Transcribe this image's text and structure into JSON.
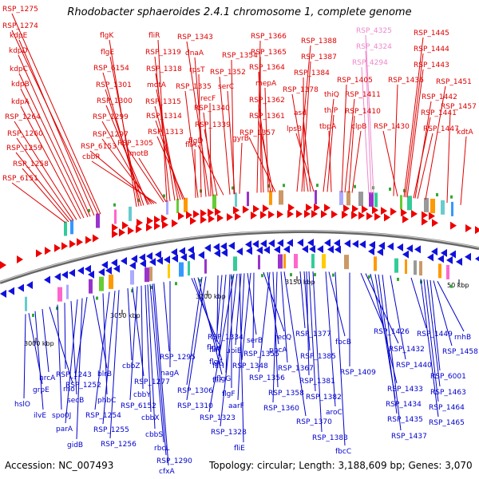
{
  "title": "Rhodobacter sphaeroides 2.4.1 chromosome 1, complete genome",
  "footer": {
    "accession": "Accession: NC_007493",
    "topology": "Topology: circular; Length: 3,188,609 bp; Genes: 3,070"
  },
  "colors": {
    "plus_label": "#dd0000",
    "minus_label": "#0000cc",
    "pink_label": "#ee88cc",
    "backbone": "#888888",
    "plus_strand": "#ff0000",
    "minus_strand": "#0000ee"
  },
  "ticks": [
    {
      "label": "3000 kbp"
    },
    {
      "label": "3050 kbp"
    },
    {
      "label": "3100 kbp"
    },
    {
      "label": "3150 kbp"
    },
    {
      "label": "50 kbp"
    }
  ],
  "plus_labels": [
    {
      "text": "RSP_1275"
    },
    {
      "text": "RSP_1274"
    },
    {
      "text": "kdpE"
    },
    {
      "text": "kdpD"
    },
    {
      "text": "kdpC"
    },
    {
      "text": "kdpB"
    },
    {
      "text": "kdpA"
    },
    {
      "text": "RSP_1264"
    },
    {
      "text": "RSP_1260"
    },
    {
      "text": "RSP_1259"
    },
    {
      "text": "RSP_1258"
    },
    {
      "text": "RSP_6151"
    },
    {
      "text": "flgK"
    },
    {
      "text": "flgE"
    },
    {
      "text": "RSP_6154"
    },
    {
      "text": "RSP_1301"
    },
    {
      "text": "RSP_1300"
    },
    {
      "text": "RSP_1299"
    },
    {
      "text": "RSP_1297"
    },
    {
      "text": "RSP_6153"
    },
    {
      "text": "cbbR"
    },
    {
      "text": "fliR"
    },
    {
      "text": "RSP_1319"
    },
    {
      "text": "RSP_1318"
    },
    {
      "text": "motA"
    },
    {
      "text": "RSP_1315"
    },
    {
      "text": "RSP_1314"
    },
    {
      "text": "RSP_1313"
    },
    {
      "text": "RSP_1305"
    },
    {
      "text": "motB"
    },
    {
      "text": "RSP_1343"
    },
    {
      "text": "dnaA"
    },
    {
      "text": "rpsT"
    },
    {
      "text": "RSP_1335"
    },
    {
      "text": "recF"
    },
    {
      "text": "RSP_1340"
    },
    {
      "text": "RSP_1339"
    },
    {
      "text": "fliA"
    },
    {
      "text": "flgD"
    },
    {
      "text": "RSP_1354"
    },
    {
      "text": "RSP_1352"
    },
    {
      "text": "serC"
    },
    {
      "text": "gyrB"
    },
    {
      "text": "RSP_1366"
    },
    {
      "text": "RSP_1365"
    },
    {
      "text": "RSP_1364"
    },
    {
      "text": "mepA"
    },
    {
      "text": "RSP_1362"
    },
    {
      "text": "RSP_1361"
    },
    {
      "text": "RSP_1357"
    },
    {
      "text": "RSP_1388"
    },
    {
      "text": "RSP_1387"
    },
    {
      "text": "RSP_1384"
    },
    {
      "text": "RSP_1378"
    },
    {
      "text": "thiQ"
    },
    {
      "text": "asd"
    },
    {
      "text": "thiP"
    },
    {
      "text": "lpsB"
    },
    {
      "text": "tbpA"
    },
    {
      "text": "RSP_1405"
    },
    {
      "text": "RSP_1411"
    },
    {
      "text": "RSP_1410"
    },
    {
      "text": "clpB"
    },
    {
      "text": "RSP_1445"
    },
    {
      "text": "RSP_1444"
    },
    {
      "text": "RSP_1443"
    },
    {
      "text": "RSP_1436"
    },
    {
      "text": "RSP_1451"
    },
    {
      "text": "RSP_1442"
    },
    {
      "text": "RSP_1441"
    },
    {
      "text": "RSP_1457"
    },
    {
      "text": "RSP_1430"
    },
    {
      "text": "RSP_1447"
    },
    {
      "text": "kdtA"
    }
  ],
  "pink_labels": [
    {
      "text": "RSP_4325"
    },
    {
      "text": "RSP_4324"
    },
    {
      "text": "RSP_4294"
    }
  ],
  "minus_labels": [
    {
      "text": "hslO"
    },
    {
      "text": "grpE"
    },
    {
      "text": "ilvE"
    },
    {
      "text": "hrcA"
    },
    {
      "text": "rho"
    },
    {
      "text": "spo0J"
    },
    {
      "text": "RSP_1243"
    },
    {
      "text": "secB"
    },
    {
      "text": "parA"
    },
    {
      "text": "gidB"
    },
    {
      "text": "RSP_1252"
    },
    {
      "text": "blrB"
    },
    {
      "text": "phbC"
    },
    {
      "text": "RSP_1254"
    },
    {
      "text": "RSP_1255"
    },
    {
      "text": "RSP_1256"
    },
    {
      "text": "cbbZ"
    },
    {
      "text": "RSP_1277"
    },
    {
      "text": "RSP_6152"
    },
    {
      "text": "cbbY"
    },
    {
      "text": "cbbX"
    },
    {
      "text": "cbbS"
    },
    {
      "text": "rbcL"
    },
    {
      "text": "RSP_1290"
    },
    {
      "text": "cfxA"
    },
    {
      "text": "RSP_1295"
    },
    {
      "text": "nagA"
    },
    {
      "text": "fliP"
    },
    {
      "text": "fliH"
    },
    {
      "text": "fliF"
    },
    {
      "text": "RSP_1306"
    },
    {
      "text": "RSP_1310"
    },
    {
      "text": "RSP_1334"
    },
    {
      "text": "flgH"
    },
    {
      "text": "flgA"
    },
    {
      "text": "flgG"
    },
    {
      "text": "flgF"
    },
    {
      "text": "RSP_1323"
    },
    {
      "text": "RSP_1328"
    },
    {
      "text": "fliE"
    },
    {
      "text": "ubiE"
    },
    {
      "text": "aarF"
    },
    {
      "text": "serB"
    },
    {
      "text": "RSP_1348"
    },
    {
      "text": "RSP_1355"
    },
    {
      "text": "recQ"
    },
    {
      "text": "pncA"
    },
    {
      "text": "RSP_1356"
    },
    {
      "text": "RSP_1358"
    },
    {
      "text": "RSP_1360"
    },
    {
      "text": "RSP_1367"
    },
    {
      "text": "RSP_1370"
    },
    {
      "text": "RSP_1377"
    },
    {
      "text": "RSP_1385"
    },
    {
      "text": "RSP_1381"
    },
    {
      "text": "RSP_1382"
    },
    {
      "text": "RSP_1383"
    },
    {
      "text": "fbcB"
    },
    {
      "text": "aroC"
    },
    {
      "text": "fbcC"
    },
    {
      "text": "RSP_1409"
    },
    {
      "text": "RSP_1426"
    },
    {
      "text": "RSP_1432"
    },
    {
      "text": "RSP_1433"
    },
    {
      "text": "RSP_1434"
    },
    {
      "text": "RSP_1435"
    },
    {
      "text": "RSP_1437"
    },
    {
      "text": "RSP_1440"
    },
    {
      "text": "RSP_1449"
    },
    {
      "text": "rnhB"
    },
    {
      "text": "RSP_1458"
    },
    {
      "text": "RSP_6001"
    },
    {
      "text": "RSP_1463"
    },
    {
      "text": "RSP_1464"
    },
    {
      "text": "RSP_1465"
    }
  ]
}
